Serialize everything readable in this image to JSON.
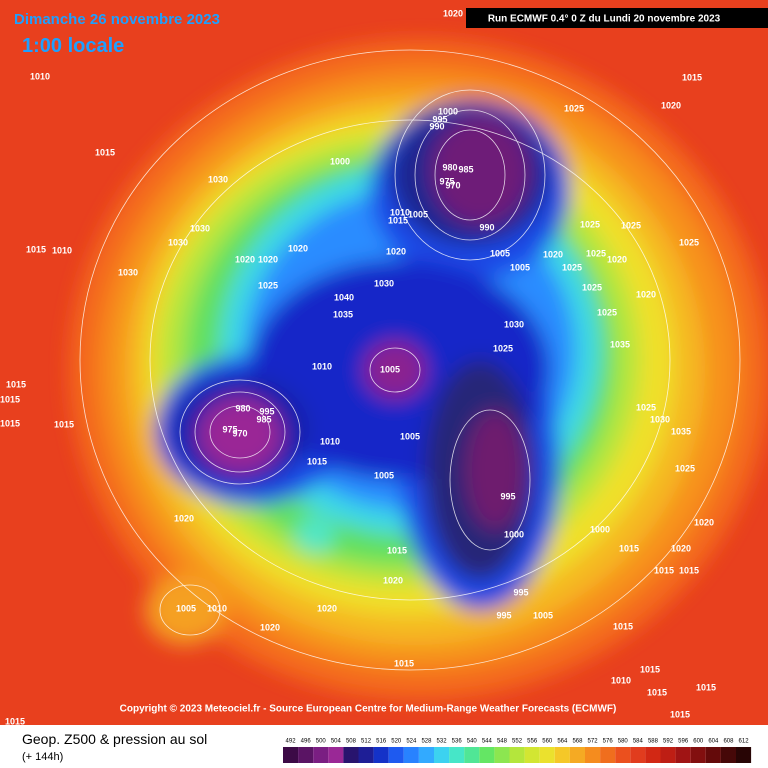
{
  "header": {
    "title": "Dimanche 26 novembre 2023",
    "time": "1:00 locale",
    "run": "Run ECMWF 0.4° 0 Z du Lundi 20 novembre 2023"
  },
  "isobar_labels": [
    "1020",
    "1010",
    "1015",
    "1030",
    "1015",
    "1010",
    "1030",
    "1030",
    "1030",
    "1020",
    "1020",
    "1020",
    "1025",
    "1040",
    "1035",
    "1030",
    "1020",
    "1010",
    "1005",
    "1000",
    "1000",
    "995",
    "990",
    "985",
    "980",
    "975",
    "970",
    "1005",
    "1010",
    "1015",
    "990",
    "1005",
    "1005",
    "1020",
    "1025",
    "1025",
    "1025",
    "1025",
    "1025",
    "1020",
    "1020",
    "1025",
    "1025",
    "1030",
    "1025",
    "1035",
    "1015",
    "1020",
    "1025",
    "1015",
    "1015",
    "1015",
    "1015",
    "980",
    "995",
    "985",
    "975",
    "970",
    "1010",
    "1015",
    "1005",
    "1005",
    "995",
    "1000",
    "1000",
    "1025",
    "1030",
    "1035",
    "1025",
    "1020",
    "1015",
    "1015",
    "1020",
    "1015",
    "1020",
    "1005",
    "1010",
    "1020",
    "1020",
    "1015",
    "1020",
    "995",
    "995",
    "1005",
    "1015",
    "1015",
    "1010",
    "1015",
    "1015",
    "1015",
    "1015",
    "1015"
  ],
  "footer": {
    "copyright": "Copyright © 2023 Meteociel.fr - Source European Centre for Medium-Range Weather Forecasts (ECMWF)",
    "product": "Geop. Z500 & pression au sol",
    "lead": "(+ 144h)"
  },
  "colorbar": {
    "values": [
      "492",
      "496",
      "500",
      "504",
      "508",
      "512",
      "516",
      "520",
      "524",
      "528",
      "532",
      "536",
      "540",
      "544",
      "548",
      "552",
      "556",
      "560",
      "564",
      "568",
      "572",
      "576",
      "580",
      "584",
      "588",
      "592",
      "596",
      "600",
      "604",
      "608",
      "612"
    ],
    "colors": [
      "#3c0a46",
      "#5a1464",
      "#7a1e82",
      "#9a2896",
      "#28146e",
      "#1e1e96",
      "#1432c8",
      "#1e5af0",
      "#2882ff",
      "#32aaff",
      "#3cd2f0",
      "#46e6c8",
      "#50e696",
      "#64e664",
      "#8ce650",
      "#b4e63c",
      "#d2e632",
      "#ebe12d",
      "#f5c828",
      "#f5aa23",
      "#f58c1e",
      "#f06e1e",
      "#eb501e",
      "#e13c1e",
      "#d22814",
      "#be1e14",
      "#a01414",
      "#820f0f",
      "#640a0a",
      "#460808",
      "#280505"
    ]
  }
}
